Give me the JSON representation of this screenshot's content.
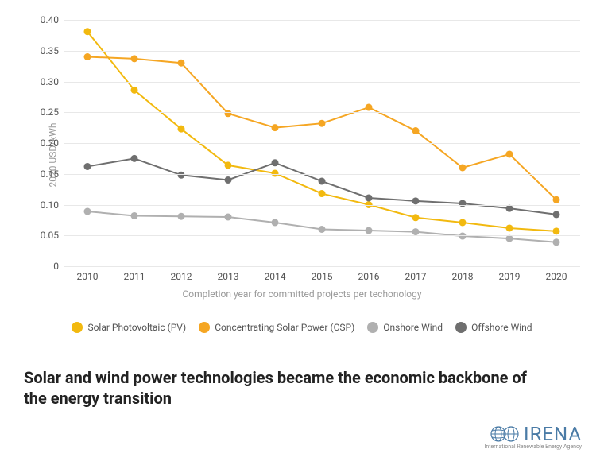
{
  "chart": {
    "type": "line",
    "y_label": "2020 USD/kWh",
    "x_label": "Completion year for committed projects per techonology",
    "xlim": [
      2010,
      2020
    ],
    "ylim": [
      0,
      0.4
    ],
    "x_ticks": [
      2010,
      2011,
      2012,
      2013,
      2014,
      2015,
      2016,
      2017,
      2018,
      2019,
      2020
    ],
    "y_ticks": [
      0,
      0.05,
      0.1,
      0.15,
      0.2,
      0.25,
      0.3,
      0.35,
      0.4
    ],
    "grid_color": "#e8e8e8",
    "background_color": "#ffffff",
    "tick_fontsize": 12,
    "label_fontsize": 12,
    "label_color": "#999999",
    "tick_color": "#555555",
    "line_width": 2,
    "marker_radius": 4.5,
    "series": [
      {
        "name": "Solar Photovoltaic (PV)",
        "color": "#f2b90f",
        "x": [
          2010,
          2011,
          2012,
          2013,
          2014,
          2015,
          2016,
          2017,
          2018,
          2019,
          2020
        ],
        "y": [
          0.381,
          0.286,
          0.223,
          0.164,
          0.151,
          0.118,
          0.1,
          0.079,
          0.071,
          0.062,
          0.057
        ]
      },
      {
        "name": "Concentrating Solar Power (CSP)",
        "color": "#f5a623",
        "x": [
          2010,
          2011,
          2012,
          2013,
          2014,
          2015,
          2016,
          2017,
          2018,
          2019,
          2020
        ],
        "y": [
          0.34,
          0.337,
          0.33,
          0.248,
          0.225,
          0.232,
          0.258,
          0.22,
          0.16,
          0.182,
          0.108
        ]
      },
      {
        "name": "Onshore Wind",
        "color": "#b0b0b0",
        "x": [
          2010,
          2011,
          2012,
          2013,
          2014,
          2015,
          2016,
          2017,
          2018,
          2019,
          2020
        ],
        "y": [
          0.089,
          0.082,
          0.081,
          0.08,
          0.071,
          0.06,
          0.058,
          0.056,
          0.049,
          0.045,
          0.039
        ]
      },
      {
        "name": "Offshore Wind",
        "color": "#6f6f6f",
        "x": [
          2010,
          2011,
          2012,
          2013,
          2014,
          2015,
          2016,
          2017,
          2018,
          2019,
          2020
        ],
        "y": [
          0.162,
          0.175,
          0.148,
          0.14,
          0.168,
          0.138,
          0.111,
          0.106,
          0.102,
          0.094,
          0.084
        ]
      }
    ]
  },
  "legend": [
    "Solar Photovoltaic (PV)",
    "Concentrating Solar Power (CSP)",
    "Onshore Wind",
    "Offshore Wind"
  ],
  "headline": "Solar and wind power technologies became the economic backbone of the energy transition",
  "logo": {
    "text": "IRENA",
    "subtitle": "International Renewable Energy Agency",
    "globe_color": "#4a7ba6"
  }
}
